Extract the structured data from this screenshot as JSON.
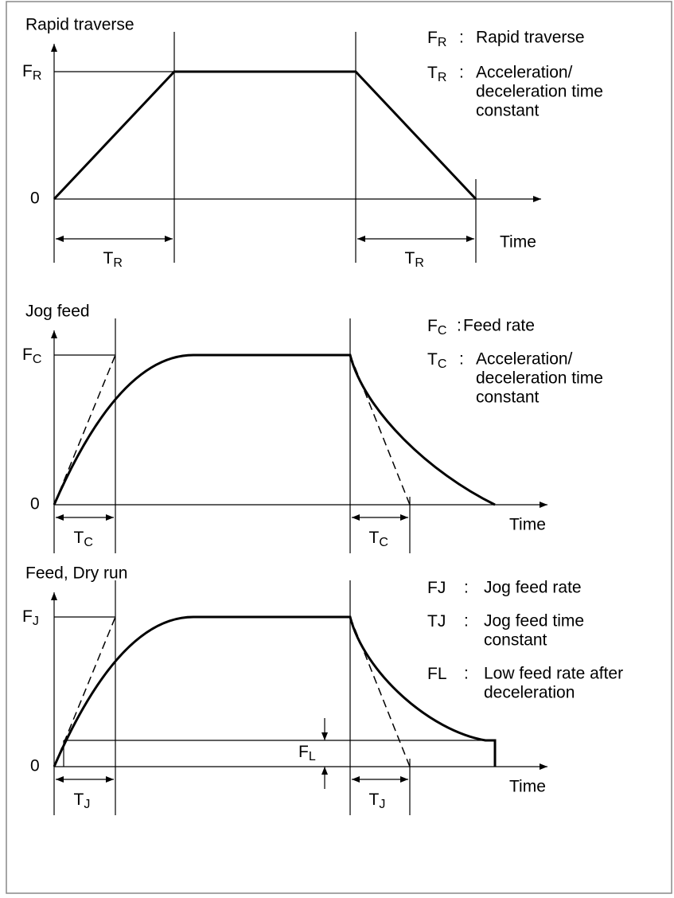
{
  "panels": [
    {
      "title": "Rapid traverse",
      "axis": {
        "y_top": {
          "base": "F",
          "sub": "R"
        },
        "origin": "0",
        "x": "Time"
      },
      "time_labels": [
        {
          "base": "T",
          "sub": "R"
        },
        {
          "base": "T",
          "sub": "R"
        }
      ],
      "legend": [
        {
          "symbol": {
            "base": "F",
            "sub": "R"
          },
          "separator": ":",
          "text": [
            "Rapid traverse"
          ]
        },
        {
          "symbol": {
            "base": "T",
            "sub": "R"
          },
          "separator": ":",
          "text": [
            "Acceleration/",
            "deceleration time",
            "constant"
          ]
        }
      ]
    },
    {
      "title": "Jog feed",
      "axis": {
        "y_top": {
          "base": "F",
          "sub": "C"
        },
        "origin": "0",
        "x": "Time"
      },
      "time_labels": [
        {
          "base": "T",
          "sub": "C"
        },
        {
          "base": "T",
          "sub": "C"
        }
      ],
      "legend": [
        {
          "symbol": {
            "base": "F",
            "sub": "C"
          },
          "separator": ":",
          "text": [
            "Feed rate"
          ]
        },
        {
          "symbol": {
            "base": "T",
            "sub": "C"
          },
          "separator": ":",
          "text": [
            "Acceleration/",
            "deceleration time",
            "constant"
          ]
        }
      ]
    },
    {
      "title": "Feed, Dry run",
      "axis": {
        "y_top": {
          "base": "F",
          "sub": "J"
        },
        "origin": "0",
        "x": "Time"
      },
      "time_labels": [
        {
          "base": "T",
          "sub": "J"
        },
        {
          "base": "T",
          "sub": "J"
        }
      ],
      "low_label": {
        "base": "F",
        "sub": "L"
      },
      "legend": [
        {
          "symbol": {
            "base": "FJ",
            "sub": ""
          },
          "separator": ":",
          "text": [
            "Jog feed rate"
          ]
        },
        {
          "symbol": {
            "base": "TJ",
            "sub": ""
          },
          "separator": ":",
          "text": [
            "Jog feed time",
            "constant"
          ]
        },
        {
          "symbol": {
            "base": "FL",
            "sub": ""
          },
          "separator": ":",
          "text": [
            "Low feed rate after",
            "deceleration"
          ]
        }
      ]
    }
  ]
}
